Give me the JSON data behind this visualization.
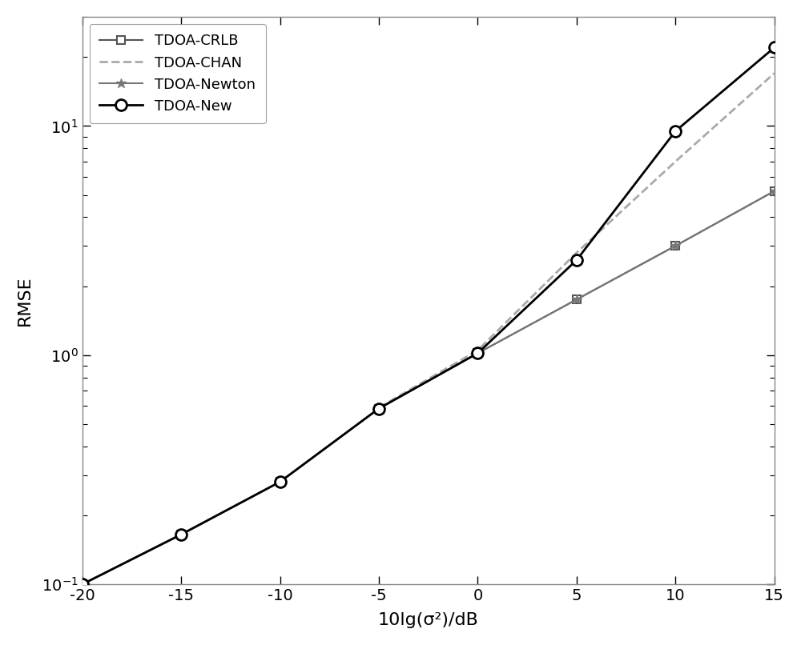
{
  "x_full": [
    -20,
    -15,
    -10,
    -5,
    0,
    5,
    10,
    15
  ],
  "crlb_y": [
    0.1,
    0.165,
    0.28,
    0.585,
    1.02,
    1.75,
    3.0,
    5.2
  ],
  "newton_y": [
    0.1,
    0.165,
    0.28,
    0.585,
    1.02,
    1.75,
    3.0,
    5.2
  ],
  "new_y": [
    0.1,
    0.165,
    0.28,
    0.585,
    1.02,
    2.6,
    9.5,
    22.0
  ],
  "chan_x": [
    -5,
    0,
    5,
    10,
    15
  ],
  "chan_y": [
    0.59,
    1.05,
    2.8,
    7.0,
    17.0
  ],
  "xlabel": "10lg(σ²)/dB",
  "ylabel": "RMSE",
  "xlim": [
    -20,
    15
  ],
  "ylim_min": 0.1,
  "ylim_max": 30.0,
  "xticks": [
    -20,
    -15,
    -10,
    -5,
    0,
    5,
    10,
    15
  ],
  "legend_labels": [
    "TDOA-CRLB",
    "TDOA-CHAN",
    "TDOA-Newton",
    "TDOA-New"
  ],
  "bg_color": "#ffffff",
  "color_crlb": "#555555",
  "color_chan": "#aaaaaa",
  "color_newton": "#777777",
  "color_new": "#000000",
  "lw_thin": 1.5,
  "lw_thick": 2.0
}
